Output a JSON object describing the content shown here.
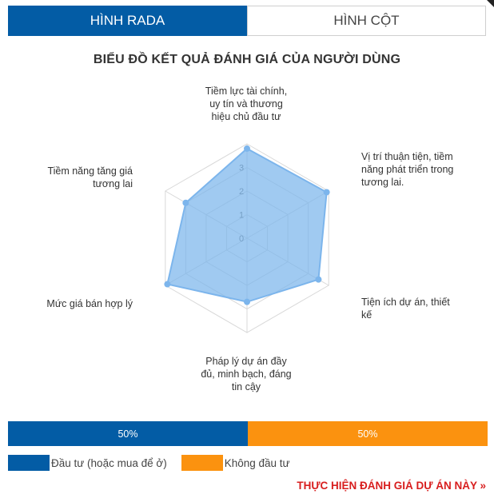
{
  "tabs": [
    {
      "label": "HÌNH RADA",
      "active": true
    },
    {
      "label": "HÌNH CỘT",
      "active": false
    }
  ],
  "chart_data": {
    "type": "radar",
    "title": "BIỂU ĐỒ KẾT QUẢ ĐÁNH GIÁ CỦA NGƯỜI DÙNG",
    "axes": [
      "Tiềm lực tài chính, uy tín và thương hiệu chủ đầu tư",
      "Vị trí thuận tiện, tiềm năng phát triển trong tương lai.",
      "Tiện ích dự án, thiết kế",
      "Pháp lý dự án đầy đủ, minh bạch, đáng tin cậy",
      "Mức giá bán hợp lý",
      "Tiềm năng tăng giá tương lai"
    ],
    "series": [
      {
        "values": [
          3.8,
          3.9,
          3.5,
          2.7,
          3.9,
          3.0
        ],
        "color": "#7cb5ec"
      }
    ],
    "rlim": [
      0,
      4
    ],
    "ticks": [
      "0",
      "1",
      "2",
      "3"
    ],
    "grid": true
  },
  "distribution": {
    "segments": [
      {
        "percent": 50,
        "label": "50%",
        "color": "#035ca5"
      },
      {
        "percent": 50,
        "label": "50%",
        "color": "#fb920f"
      }
    ]
  },
  "legend": [
    {
      "label": "Đầu tư (hoặc mua để ở)",
      "color": "#035ca5"
    },
    {
      "label": "Không đầu tư",
      "color": "#fb920f"
    }
  ],
  "cta": {
    "label": "THỰC HIỆN ĐÁNH GIÁ DỰ ÁN NÀY »"
  }
}
